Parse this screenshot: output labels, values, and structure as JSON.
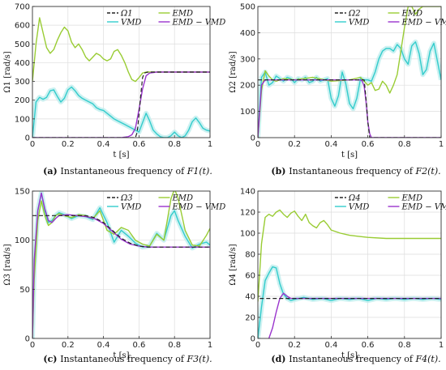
{
  "colors": {
    "omega": "#222222",
    "emd": "#99cc33",
    "vmd": "#33cccc",
    "emdvmd": "#9933cc",
    "band_vmd": "#bfeeee"
  },
  "chart_data": [
    {
      "type": "line",
      "label": "(a)",
      "caption": "Instantaneous frequency of",
      "caption_math": "F1(t).",
      "ylabel": "Ω1 [rad/s]",
      "xlabel": "t [s]",
      "xlim": [
        0,
        1
      ],
      "ylim": [
        0,
        700
      ],
      "xticks": [
        "0",
        "0.2",
        "0.4",
        "0.6",
        "0.8",
        "1"
      ],
      "yticks": [
        "0",
        "100",
        "200",
        "300",
        "400",
        "500",
        "600",
        "700"
      ],
      "legend": [
        "Ω1",
        "EMD",
        "VMD",
        "EMD − VMD"
      ],
      "series": [
        {
          "key": "omega",
          "name": "Ω1",
          "x": [
            0,
            0.58,
            0.59,
            0.6,
            0.61,
            0.62,
            0.63,
            0.65,
            0.7,
            1
          ],
          "y": [
            0,
            0,
            30,
            120,
            230,
            320,
            345,
            350,
            350,
            350
          ]
        },
        {
          "key": "emd",
          "name": "EMD",
          "x": [
            0,
            0.02,
            0.04,
            0.06,
            0.08,
            0.1,
            0.12,
            0.14,
            0.16,
            0.18,
            0.2,
            0.22,
            0.24,
            0.26,
            0.28,
            0.3,
            0.32,
            0.34,
            0.36,
            0.38,
            0.4,
            0.42,
            0.44,
            0.46,
            0.48,
            0.5,
            0.52,
            0.54,
            0.56,
            0.58,
            0.6,
            0.62,
            0.64,
            0.7,
            0.8,
            0.9,
            1
          ],
          "y": [
            300,
            500,
            640,
            560,
            480,
            450,
            470,
            520,
            560,
            590,
            570,
            510,
            480,
            500,
            470,
            430,
            410,
            430,
            450,
            440,
            420,
            410,
            420,
            460,
            470,
            440,
            400,
            350,
            310,
            300,
            320,
            345,
            350,
            350,
            350,
            350,
            350
          ]
        },
        {
          "key": "vmd",
          "name": "VMD",
          "x": [
            0,
            0.02,
            0.04,
            0.06,
            0.08,
            0.1,
            0.12,
            0.14,
            0.16,
            0.18,
            0.2,
            0.22,
            0.24,
            0.26,
            0.28,
            0.3,
            0.32,
            0.34,
            0.36,
            0.38,
            0.4,
            0.42,
            0.44,
            0.46,
            0.48,
            0.5,
            0.52,
            0.54,
            0.56,
            0.58,
            0.6,
            0.62,
            0.64,
            0.66,
            0.68,
            0.7,
            0.72,
            0.74,
            0.76,
            0.78,
            0.8,
            0.82,
            0.84,
            0.86,
            0.88,
            0.9,
            0.92,
            0.94,
            0.96,
            0.98,
            1
          ],
          "y": [
            0,
            190,
            215,
            205,
            215,
            250,
            255,
            220,
            190,
            210,
            255,
            270,
            250,
            225,
            210,
            200,
            190,
            180,
            160,
            150,
            145,
            130,
            115,
            100,
            90,
            80,
            70,
            60,
            50,
            40,
            30,
            80,
            130,
            90,
            40,
            20,
            5,
            0,
            0,
            10,
            30,
            10,
            0,
            10,
            40,
            85,
            105,
            80,
            50,
            40,
            35
          ]
        },
        {
          "key": "emdvmd",
          "name": "EMD − VMD",
          "x": [
            0,
            0.5,
            0.54,
            0.56,
            0.58,
            0.6,
            0.62,
            0.64,
            0.66,
            0.7,
            0.8,
            0.9,
            1
          ],
          "y": [
            0,
            0,
            5,
            15,
            50,
            150,
            260,
            330,
            345,
            350,
            350,
            350,
            350
          ]
        }
      ]
    },
    {
      "type": "line",
      "label": "(b)",
      "caption": "Instantaneous frequency of",
      "caption_math": "F2(t).",
      "ylabel": "Ω2 [rad/s]",
      "xlabel": "t [s]",
      "xlim": [
        0,
        1
      ],
      "ylim": [
        0,
        500
      ],
      "xticks": [
        "0",
        "0.2",
        "0.4",
        "0.6",
        "0.8",
        "1"
      ],
      "yticks": [
        "0",
        "100",
        "200",
        "300",
        "400",
        "500"
      ],
      "legend": [
        "Ω2",
        "EMD",
        "VMD",
        "EMD − VMD"
      ],
      "series": [
        {
          "key": "omega",
          "name": "Ω2",
          "x": [
            0,
            0.01,
            0.58,
            0.59,
            0.6,
            0.61,
            1
          ],
          "y": [
            220,
            220,
            220,
            150,
            60,
            0,
            0
          ]
        },
        {
          "key": "emd",
          "name": "EMD",
          "x": [
            0,
            0.02,
            0.04,
            0.06,
            0.08,
            0.1,
            0.14,
            0.2,
            0.3,
            0.4,
            0.5,
            0.56,
            0.6,
            0.62,
            0.64,
            0.66,
            0.68,
            0.7,
            0.72,
            0.74,
            0.76,
            0.78,
            0.8,
            0.82,
            0.84,
            0.86,
            0.88,
            0.9,
            0.92,
            0.94,
            0.96,
            1
          ],
          "y": [
            0,
            180,
            255,
            235,
            220,
            215,
            225,
            220,
            230,
            215,
            220,
            230,
            200,
            210,
            180,
            185,
            215,
            200,
            170,
            200,
            240,
            330,
            420,
            500,
            500,
            470,
            490,
            500,
            500,
            500,
            500,
            500
          ]
        },
        {
          "key": "vmd",
          "name": "VMD",
          "x": [
            0,
            0.02,
            0.04,
            0.06,
            0.08,
            0.1,
            0.12,
            0.14,
            0.16,
            0.18,
            0.2,
            0.22,
            0.24,
            0.26,
            0.28,
            0.3,
            0.32,
            0.34,
            0.36,
            0.38,
            0.4,
            0.42,
            0.44,
            0.46,
            0.48,
            0.5,
            0.52,
            0.54,
            0.56,
            0.58,
            0.6,
            0.62,
            0.64,
            0.66,
            0.68,
            0.7,
            0.72,
            0.74,
            0.76,
            0.78,
            0.8,
            0.82,
            0.84,
            0.86,
            0.88,
            0.9,
            0.92,
            0.94,
            0.96,
            0.98,
            1
          ],
          "y": [
            0,
            230,
            250,
            200,
            210,
            235,
            225,
            215,
            230,
            225,
            210,
            225,
            220,
            230,
            210,
            215,
            230,
            215,
            220,
            225,
            150,
            120,
            160,
            250,
            205,
            130,
            110,
            150,
            225,
            220,
            220,
            215,
            250,
            300,
            330,
            340,
            340,
            330,
            355,
            340,
            300,
            280,
            350,
            365,
            320,
            240,
            260,
            330,
            360,
            290,
            220
          ]
        },
        {
          "key": "emdvmd",
          "name": "EMD − VMD",
          "x": [
            0,
            0.02,
            0.04,
            0.56,
            0.57,
            0.58,
            0.59,
            0.6,
            0.61,
            0.62,
            1
          ],
          "y": [
            0,
            200,
            220,
            220,
            215,
            195,
            140,
            60,
            15,
            0,
            0
          ]
        }
      ]
    },
    {
      "type": "line",
      "label": "(c)",
      "caption": "Instantaneous frequency of",
      "caption_math": "F3(t).",
      "ylabel": "Ω3 [rad/s]",
      "xlabel": "t [s]",
      "xlim": [
        0,
        1
      ],
      "ylim": [
        0,
        150
      ],
      "xticks": [
        "0",
        "0.2",
        "0.4",
        "0.6",
        "0.8",
        "1"
      ],
      "yticks": [
        "0",
        "50",
        "100",
        "150"
      ],
      "legend": [
        "Ω3",
        "EMD",
        "VMD",
        "EMD − VMD"
      ],
      "series": [
        {
          "key": "omega",
          "name": "Ω3",
          "x": [
            0,
            0.3,
            0.35,
            0.4,
            0.45,
            0.5,
            0.55,
            0.6,
            0.65,
            1
          ],
          "y": [
            125,
            125,
            123,
            118,
            110,
            102,
            97,
            94,
            93,
            93
          ]
        },
        {
          "key": "emd",
          "name": "EMD",
          "x": [
            0,
            0.01,
            0.03,
            0.05,
            0.07,
            0.09,
            0.11,
            0.13,
            0.15,
            0.18,
            0.22,
            0.26,
            0.3,
            0.34,
            0.38,
            0.42,
            0.46,
            0.5,
            0.54,
            0.58,
            0.62,
            0.66,
            0.7,
            0.74,
            0.78,
            0.8,
            0.82,
            0.86,
            0.9,
            0.94,
            0.98,
            1
          ],
          "y": [
            0,
            60,
            120,
            140,
            125,
            115,
            118,
            125,
            127,
            125,
            123,
            126,
            125,
            122,
            130,
            110,
            106,
            113,
            110,
            100,
            96,
            94,
            106,
            100,
            142,
            152,
            143,
            110,
            95,
            94,
            105,
            112
          ]
        },
        {
          "key": "vmd",
          "name": "VMD",
          "x": [
            0,
            0.01,
            0.03,
            0.05,
            0.07,
            0.09,
            0.11,
            0.13,
            0.15,
            0.18,
            0.22,
            0.26,
            0.3,
            0.34,
            0.38,
            0.42,
            0.46,
            0.5,
            0.54,
            0.58,
            0.62,
            0.66,
            0.7,
            0.74,
            0.78,
            0.8,
            0.82,
            0.86,
            0.9,
            0.94,
            0.98,
            1
          ],
          "y": [
            0,
            70,
            130,
            148,
            130,
            118,
            120,
            125,
            128,
            126,
            122,
            125,
            124,
            121,
            133,
            118,
            98,
            110,
            104,
            97,
            93,
            94,
            107,
            100,
            125,
            130,
            120,
            104,
            92,
            96,
            98,
            95
          ]
        },
        {
          "key": "emdvmd",
          "name": "EMD − VMD",
          "x": [
            0,
            0.01,
            0.03,
            0.05,
            0.07,
            0.09,
            0.11,
            0.13,
            0.15,
            0.2,
            0.25,
            0.3,
            0.35,
            0.4,
            0.45,
            0.5,
            0.55,
            0.6,
            0.65,
            0.7,
            1
          ],
          "y": [
            0,
            80,
            130,
            148,
            132,
            120,
            118,
            122,
            125,
            126,
            125,
            124,
            122,
            117,
            109,
            101,
            96,
            94,
            93,
            93,
            93
          ]
        }
      ]
    },
    {
      "type": "line",
      "label": "(d)",
      "caption": "Instantaneous frequency of",
      "caption_math": "F4(t).",
      "ylabel": "Ω4 [rad/s]",
      "xlabel": "t [s]",
      "xlim": [
        0,
        1
      ],
      "ylim": [
        0,
        140
      ],
      "xticks": [
        "0",
        "0.2",
        "0.4",
        "0.6",
        "0.8",
        "1"
      ],
      "yticks": [
        "0",
        "20",
        "40",
        "60",
        "80",
        "100",
        "120",
        "140"
      ],
      "legend": [
        "Ω4",
        "EMD",
        "VMD",
        "EMD − VMD"
      ],
      "series": [
        {
          "key": "omega",
          "name": "Ω4",
          "x": [
            0.01,
            1
          ],
          "y": [
            38,
            38
          ]
        },
        {
          "key": "emd",
          "name": "EMD",
          "x": [
            0,
            0.02,
            0.04,
            0.06,
            0.08,
            0.1,
            0.12,
            0.14,
            0.16,
            0.18,
            0.2,
            0.22,
            0.24,
            0.26,
            0.28,
            0.3,
            0.32,
            0.34,
            0.36,
            0.38,
            0.4,
            0.45,
            0.5,
            0.55,
            0.6,
            0.7,
            0.8,
            0.9,
            1
          ],
          "y": [
            35,
            90,
            115,
            118,
            116,
            120,
            122,
            118,
            115,
            119,
            121,
            116,
            112,
            118,
            110,
            107,
            105,
            110,
            112,
            108,
            103,
            100,
            98,
            97,
            96,
            95,
            95,
            95,
            95
          ]
        },
        {
          "key": "vmd",
          "name": "VMD",
          "x": [
            0,
            0.02,
            0.04,
            0.06,
            0.08,
            0.1,
            0.12,
            0.14,
            0.16,
            0.18,
            0.2,
            0.25,
            0.3,
            0.35,
            0.4,
            0.45,
            0.5,
            0.55,
            0.6,
            0.65,
            0.7,
            0.75,
            0.8,
            0.85,
            0.9,
            0.95,
            1
          ],
          "y": [
            0,
            30,
            55,
            62,
            68,
            67,
            52,
            42,
            38,
            36,
            37,
            39,
            37,
            38,
            36,
            38,
            37,
            38,
            36,
            38,
            37,
            38,
            37,
            38,
            37,
            38,
            37
          ]
        },
        {
          "key": "emdvmd",
          "name": "EMD − VMD",
          "x": [
            0,
            0.04,
            0.06,
            0.08,
            0.1,
            0.12,
            0.14,
            0.16,
            0.18,
            0.2,
            0.3,
            0.4,
            0.5,
            0.6,
            0.7,
            0.8,
            0.9,
            1
          ],
          "y": [
            -2,
            -2,
            0,
            10,
            25,
            38,
            43,
            40,
            38,
            38,
            38,
            38,
            38,
            38,
            38,
            38,
            38,
            38
          ]
        }
      ]
    }
  ]
}
